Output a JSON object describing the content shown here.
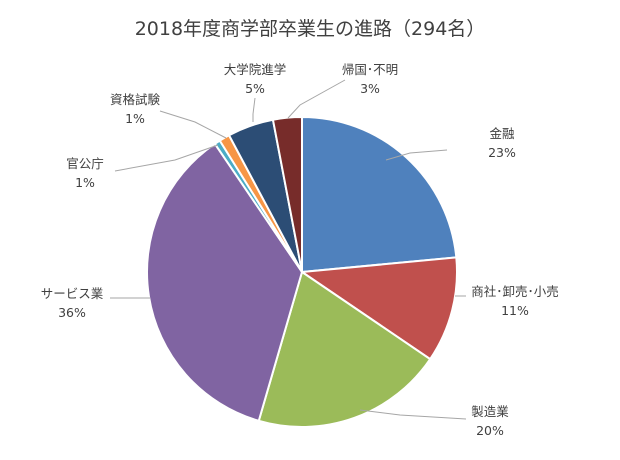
{
  "chart_data": {
    "type": "pie",
    "title": "2018年度商学部卒業生の進路（294名）",
    "start_angle_deg": 0,
    "direction": "clockwise",
    "slices": [
      {
        "label": "金融",
        "value_label": "23%",
        "value": 23.5,
        "color": "#4f81bd"
      },
      {
        "label": "商社･卸売･小売",
        "value_label": "11%",
        "value": 11.0,
        "color": "#c0504d"
      },
      {
        "label": "製造業",
        "value_label": "20%",
        "value": 20.0,
        "color": "#9bbb59"
      },
      {
        "label": "サービス業",
        "value_label": "36%",
        "value": 36.0,
        "color": "#8064a2"
      },
      {
        "label": "官公庁",
        "value_label": "1%",
        "value": 0.6,
        "color": "#4bacc6"
      },
      {
        "label": "資格試験",
        "value_label": "1%",
        "value": 1.1,
        "color": "#f79646"
      },
      {
        "label": "大学院進学",
        "value_label": "5%",
        "value": 4.8,
        "color": "#2c4d75"
      },
      {
        "label": "帰国･不明",
        "value_label": "3%",
        "value": 3.0,
        "color": "#772c2a"
      }
    ]
  }
}
